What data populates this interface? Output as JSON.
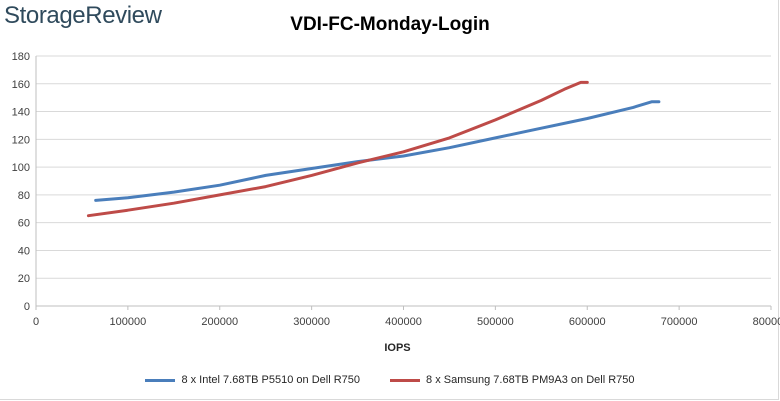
{
  "brand": {
    "text": "StorageReview"
  },
  "chart_data": {
    "type": "line",
    "title": "VDI-FC-Monday-Login",
    "xlabel": "IOPS",
    "ylabel": "",
    "xlim": [
      0,
      800000
    ],
    "ylim": [
      0,
      180
    ],
    "xticks": [
      0,
      100000,
      200000,
      300000,
      400000,
      500000,
      600000,
      700000,
      800000
    ],
    "xtick_labels": [
      "0",
      "100000",
      "200000",
      "300000",
      "400000",
      "500000",
      "600000",
      "700000",
      "800000"
    ],
    "yticks": [
      0,
      20,
      40,
      60,
      80,
      100,
      120,
      140,
      160,
      180
    ],
    "ytick_labels": [
      "0",
      "20",
      "40",
      "60",
      "80",
      "100",
      "120",
      "140",
      "160",
      "180"
    ],
    "grid": "horizontal",
    "legend_position": "bottom",
    "series": [
      {
        "name": "8 x Intel 7.68TB P5510 on Dell R750",
        "color": "#4a7ebb",
        "points": [
          [
            65000,
            76
          ],
          [
            100000,
            78
          ],
          [
            150000,
            82
          ],
          [
            200000,
            87
          ],
          [
            250000,
            94
          ],
          [
            300000,
            99
          ],
          [
            350000,
            104
          ],
          [
            400000,
            108
          ],
          [
            450000,
            114
          ],
          [
            500000,
            121
          ],
          [
            550000,
            128
          ],
          [
            600000,
            135
          ],
          [
            650000,
            143
          ],
          [
            670000,
            147
          ],
          [
            678000,
            147
          ]
        ]
      },
      {
        "name": "8 x Samsung 7.68TB PM9A3 on Dell R750",
        "color": "#be4b48",
        "points": [
          [
            57000,
            65
          ],
          [
            100000,
            69
          ],
          [
            150000,
            74
          ],
          [
            200000,
            80
          ],
          [
            250000,
            86
          ],
          [
            300000,
            94
          ],
          [
            350000,
            103
          ],
          [
            400000,
            111
          ],
          [
            450000,
            121
          ],
          [
            500000,
            134
          ],
          [
            550000,
            148
          ],
          [
            575000,
            156
          ],
          [
            593000,
            161
          ],
          [
            600000,
            161
          ]
        ]
      }
    ]
  }
}
